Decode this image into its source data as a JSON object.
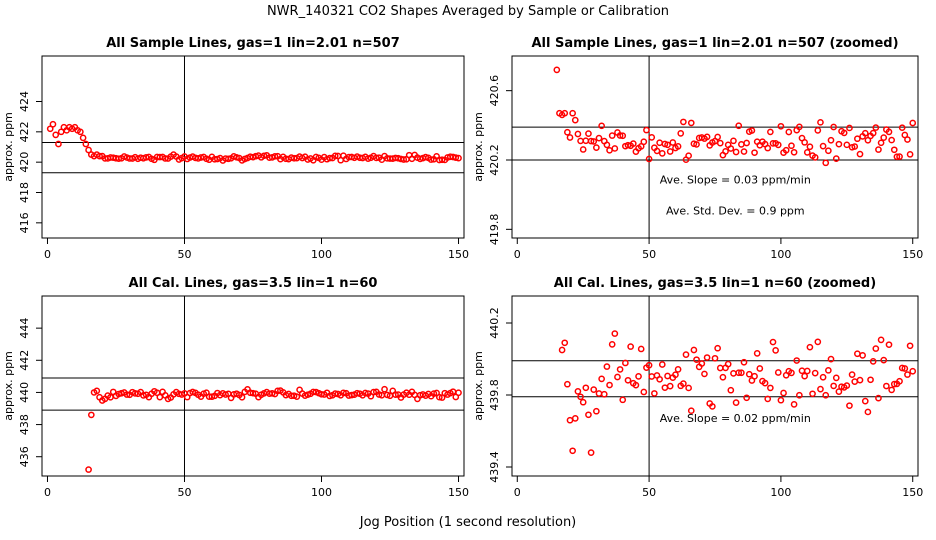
{
  "figure": {
    "title": "NWR_140321  CO2 Shapes Averaged by Sample or Calibration",
    "xlabel": "Jog Position (1 second resolution)"
  },
  "chart_data": [
    {
      "type": "scatter",
      "title": "All Sample Lines, gas=1 lin=2.01 n=507",
      "ylabel": "approx. ppm",
      "xlim": [
        -2,
        152
      ],
      "ylim": [
        415,
        427
      ],
      "xticks": [
        0,
        50,
        100,
        150
      ],
      "yticks": [
        416,
        418,
        420,
        422,
        424
      ],
      "vline": 50,
      "hlines": [
        421.3,
        419.3
      ],
      "color": "#ff0000",
      "series": [
        {
          "x": [
            1,
            2,
            3,
            4,
            5,
            6,
            7,
            8,
            9,
            10,
            11,
            12,
            13,
            14,
            15,
            16,
            17,
            18,
            19,
            20
          ],
          "y": [
            422.2,
            422.5,
            421.8,
            421.2,
            422.0,
            422.3,
            422.1,
            422.3,
            422.2,
            422.3,
            422.1,
            422.0,
            421.6,
            421.2,
            420.8,
            420.5,
            420.4,
            420.5,
            420.4,
            420.4
          ]
        },
        {
          "range": [
            21,
            150
          ],
          "level": 420.3,
          "noise": 0.08
        }
      ],
      "annotations": []
    },
    {
      "type": "scatter",
      "title": "All Sample Lines, gas=1 lin=2.01 n=507 (zoomed)",
      "ylabel": "approx. ppm",
      "xlim": [
        -2,
        152
      ],
      "ylim": [
        419.75,
        420.8
      ],
      "xticks": [
        0,
        50,
        100,
        150
      ],
      "yticks": [
        419.8,
        420.2,
        420.6
      ],
      "vline": 50,
      "hlines": [
        420.39,
        420.2
      ],
      "color": "#ff0000",
      "series": [
        {
          "x": [
            15,
            16,
            17,
            18,
            19,
            20,
            21,
            22,
            23,
            24
          ],
          "y": [
            420.72,
            420.47,
            420.46,
            420.47,
            420.36,
            420.33,
            420.47,
            420.43,
            420.35,
            420.31
          ]
        },
        {
          "range": [
            25,
            150
          ],
          "level": 420.3,
          "noise": 0.05
        }
      ],
      "annotations": [
        "Ave. Slope =  0.03  ppm/min",
        "Ave. Std. Dev. =  0.9  ppm"
      ]
    },
    {
      "type": "scatter",
      "title": "All Cal. Lines, gas=3.5 lin=1 n=60",
      "ylabel": "approx. ppm",
      "xlim": [
        -2,
        152
      ],
      "ylim": [
        434.8,
        446
      ],
      "xticks": [
        0,
        50,
        100,
        150
      ],
      "yticks": [
        436,
        438,
        440,
        442,
        444
      ],
      "vline": 50,
      "hlines": [
        440.9,
        438.9
      ],
      "color": "#ff0000",
      "series": [
        {
          "x": [
            15,
            16,
            17,
            18,
            19,
            20,
            21,
            22,
            23
          ],
          "y": [
            435.2,
            438.6,
            440.0,
            440.1,
            439.7,
            439.5,
            439.6,
            439.8,
            439.7
          ]
        },
        {
          "range": [
            24,
            150
          ],
          "level": 439.9,
          "noise": 0.12
        }
      ],
      "annotations": []
    },
    {
      "type": "scatter",
      "title": "All Cal. Lines, gas=3.5 lin=1 n=60 (zoomed)",
      "ylabel": "approx. ppm",
      "xlim": [
        -2,
        152
      ],
      "ylim": [
        439.35,
        440.35
      ],
      "xticks": [
        0,
        50,
        100,
        150
      ],
      "yticks": [
        439.4,
        439.8,
        440.2
      ],
      "vline": 50,
      "hlines": [
        439.99,
        439.79
      ],
      "color": "#ff0000",
      "series": [
        {
          "x": [
            17,
            18,
            19,
            20,
            21,
            22,
            23,
            24,
            25,
            26,
            27,
            28,
            29,
            30
          ],
          "y": [
            440.05,
            440.09,
            439.86,
            439.66,
            439.49,
            439.67,
            439.82,
            439.79,
            439.76,
            439.84,
            439.69,
            439.48,
            439.83,
            439.71
          ]
        },
        {
          "range": [
            31,
            150
          ],
          "level": 439.9,
          "noise": 0.09
        }
      ],
      "annotations": [
        "Ave. Slope =  0.02  ppm/min"
      ]
    }
  ]
}
